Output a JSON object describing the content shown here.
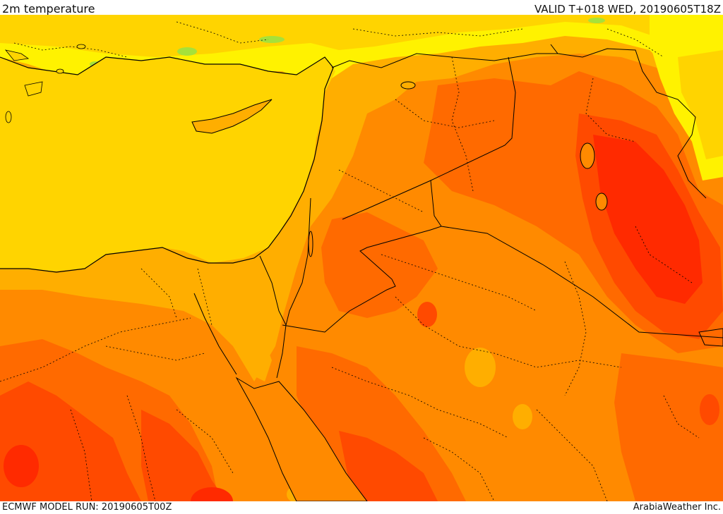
{
  "header": {
    "title": "2m temperature",
    "valid": "VALID T+018 WED, 20190605T18Z"
  },
  "footer": {
    "model_run": "ECMWF MODEL RUN: 20190605T00Z",
    "credit": "ArabiaWeather Inc."
  },
  "map": {
    "field": "2m temperature",
    "palette": {
      "light_green": "#a6e13a",
      "yellow": "#fff200",
      "gold": "#ffd400",
      "amber": "#ffae00",
      "orange": "#ff8a00",
      "dark_orange": "#ff6a00",
      "red_orange": "#ff4a00",
      "red": "#ff2a00"
    }
  }
}
